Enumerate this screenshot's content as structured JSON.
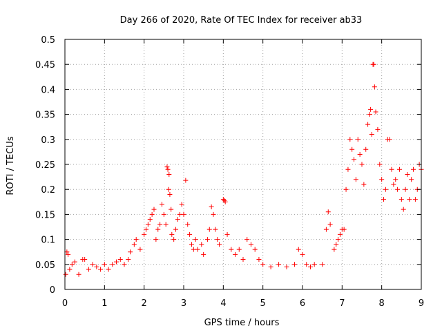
{
  "chart_data": {
    "type": "scatter",
    "title": "Day 266 of 2020, Rate Of TEC Index for receiver ab33",
    "xlabel": "GPS time / hours",
    "ylabel": "ROTI / TECUs",
    "xlim": [
      0,
      9
    ],
    "ylim": [
      0,
      0.5
    ],
    "grid": true,
    "x_ticks": [
      0,
      1,
      2,
      3,
      4,
      5,
      6,
      7,
      8,
      9
    ],
    "y_ticks": [
      0,
      0.05,
      0.1,
      0.15,
      0.2,
      0.25,
      0.3,
      0.35,
      0.4,
      0.45,
      0.5
    ],
    "x_tick_labels": [
      "0",
      "1",
      "2",
      "3",
      "4",
      "5",
      "6",
      "7",
      "8",
      "9"
    ],
    "y_tick_labels": [
      "0",
      "0.05",
      "0.1",
      "0.15",
      "0.2",
      "0.25",
      "0.3",
      "0.35",
      "0.4",
      "0.45",
      "0.5"
    ],
    "marker": "plus",
    "colors": {
      "series": "#ff0000",
      "grid": "#a0a0a0",
      "axis": "#000000"
    },
    "series": [
      {
        "name": "ROTI",
        "points": [
          [
            0.02,
            0.03
          ],
          [
            0.05,
            0.075
          ],
          [
            0.08,
            0.07
          ],
          [
            0.12,
            0.04
          ],
          [
            0.18,
            0.05
          ],
          [
            0.25,
            0.055
          ],
          [
            0.35,
            0.03
          ],
          [
            0.45,
            0.06
          ],
          [
            0.5,
            0.06
          ],
          [
            0.6,
            0.04
          ],
          [
            0.7,
            0.05
          ],
          [
            0.8,
            0.045
          ],
          [
            0.9,
            0.04
          ],
          [
            1.0,
            0.05
          ],
          [
            1.1,
            0.04
          ],
          [
            1.2,
            0.05
          ],
          [
            1.3,
            0.055
          ],
          [
            1.4,
            0.06
          ],
          [
            1.5,
            0.05
          ],
          [
            1.6,
            0.06
          ],
          [
            1.65,
            0.075
          ],
          [
            1.75,
            0.09
          ],
          [
            1.8,
            0.1
          ],
          [
            1.9,
            0.08
          ],
          [
            2.0,
            0.11
          ],
          [
            2.05,
            0.12
          ],
          [
            2.1,
            0.13
          ],
          [
            2.15,
            0.14
          ],
          [
            2.2,
            0.15
          ],
          [
            2.25,
            0.16
          ],
          [
            2.3,
            0.1
          ],
          [
            2.35,
            0.12
          ],
          [
            2.4,
            0.13
          ],
          [
            2.45,
            0.17
          ],
          [
            2.5,
            0.15
          ],
          [
            2.55,
            0.13
          ],
          [
            2.58,
            0.245
          ],
          [
            2.6,
            0.24
          ],
          [
            2.62,
            0.2
          ],
          [
            2.63,
            0.23
          ],
          [
            2.65,
            0.19
          ],
          [
            2.68,
            0.16
          ],
          [
            2.7,
            0.11
          ],
          [
            2.75,
            0.1
          ],
          [
            2.8,
            0.12
          ],
          [
            2.85,
            0.14
          ],
          [
            2.9,
            0.15
          ],
          [
            2.95,
            0.17
          ],
          [
            3.0,
            0.15
          ],
          [
            3.05,
            0.218
          ],
          [
            3.1,
            0.13
          ],
          [
            3.15,
            0.11
          ],
          [
            3.2,
            0.09
          ],
          [
            3.25,
            0.08
          ],
          [
            3.3,
            0.1
          ],
          [
            3.35,
            0.08
          ],
          [
            3.45,
            0.09
          ],
          [
            3.5,
            0.07
          ],
          [
            3.6,
            0.1
          ],
          [
            3.65,
            0.12
          ],
          [
            3.7,
            0.165
          ],
          [
            3.75,
            0.15
          ],
          [
            3.8,
            0.12
          ],
          [
            3.85,
            0.1
          ],
          [
            3.9,
            0.09
          ],
          [
            4.0,
            0.18
          ],
          [
            4.03,
            0.178
          ],
          [
            4.05,
            0.175
          ],
          [
            4.1,
            0.11
          ],
          [
            4.2,
            0.08
          ],
          [
            4.3,
            0.07
          ],
          [
            4.4,
            0.08
          ],
          [
            4.5,
            0.06
          ],
          [
            4.6,
            0.1
          ],
          [
            4.7,
            0.09
          ],
          [
            4.8,
            0.08
          ],
          [
            4.9,
            0.06
          ],
          [
            5.0,
            0.05
          ],
          [
            5.2,
            0.045
          ],
          [
            5.4,
            0.05
          ],
          [
            5.6,
            0.045
          ],
          [
            5.8,
            0.05
          ],
          [
            5.9,
            0.08
          ],
          [
            6.0,
            0.07
          ],
          [
            6.1,
            0.05
          ],
          [
            6.2,
            0.045
          ],
          [
            6.3,
            0.05
          ],
          [
            6.5,
            0.05
          ],
          [
            6.6,
            0.12
          ],
          [
            6.65,
            0.155
          ],
          [
            6.7,
            0.13
          ],
          [
            6.8,
            0.08
          ],
          [
            6.85,
            0.09
          ],
          [
            6.9,
            0.1
          ],
          [
            6.95,
            0.11
          ],
          [
            7.0,
            0.12
          ],
          [
            7.05,
            0.12
          ],
          [
            7.1,
            0.2
          ],
          [
            7.15,
            0.24
          ],
          [
            7.2,
            0.3
          ],
          [
            7.25,
            0.28
          ],
          [
            7.3,
            0.26
          ],
          [
            7.35,
            0.22
          ],
          [
            7.4,
            0.3
          ],
          [
            7.45,
            0.27
          ],
          [
            7.5,
            0.25
          ],
          [
            7.55,
            0.21
          ],
          [
            7.6,
            0.28
          ],
          [
            7.65,
            0.33
          ],
          [
            7.7,
            0.35
          ],
          [
            7.72,
            0.36
          ],
          [
            7.75,
            0.31
          ],
          [
            7.78,
            0.45
          ],
          [
            7.8,
            0.45
          ],
          [
            7.82,
            0.405
          ],
          [
            7.85,
            0.355
          ],
          [
            7.9,
            0.32
          ],
          [
            7.95,
            0.25
          ],
          [
            8.0,
            0.22
          ],
          [
            8.05,
            0.18
          ],
          [
            8.1,
            0.2
          ],
          [
            8.15,
            0.3
          ],
          [
            8.2,
            0.3
          ],
          [
            8.25,
            0.24
          ],
          [
            8.3,
            0.21
          ],
          [
            8.35,
            0.22
          ],
          [
            8.4,
            0.2
          ],
          [
            8.45,
            0.24
          ],
          [
            8.5,
            0.18
          ],
          [
            8.55,
            0.16
          ],
          [
            8.6,
            0.2
          ],
          [
            8.65,
            0.23
          ],
          [
            8.7,
            0.18
          ],
          [
            8.75,
            0.22
          ],
          [
            8.8,
            0.24
          ],
          [
            8.85,
            0.18
          ],
          [
            8.9,
            0.2
          ],
          [
            8.95,
            0.25
          ],
          [
            9.0,
            0.24
          ]
        ]
      }
    ]
  }
}
